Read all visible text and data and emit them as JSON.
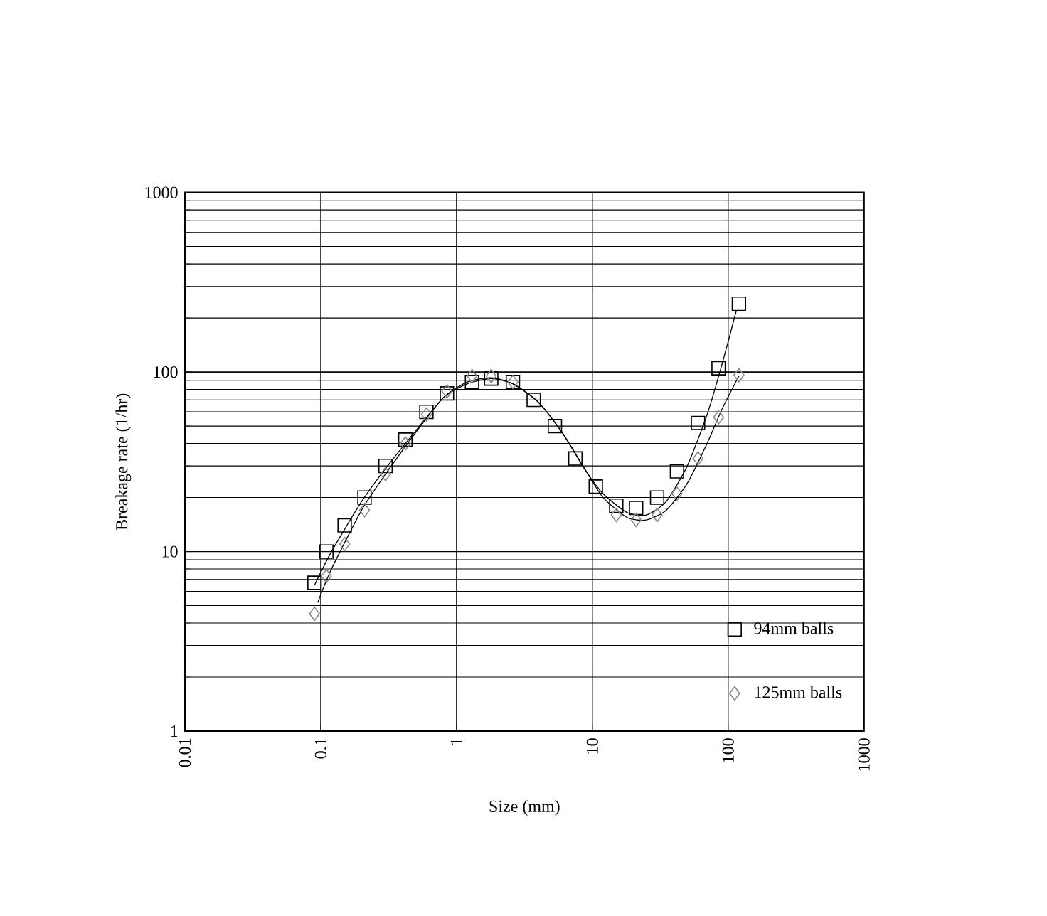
{
  "chart_data": {
    "type": "scatter",
    "xlabel": "Size (mm)",
    "ylabel": "Breakage rate (1/hr)",
    "log": "xy",
    "grid": true,
    "legend": "bottom right",
    "xlim": [
      0.01,
      1000
    ],
    "ylim": [
      1,
      1000
    ],
    "xticks": [
      0.01,
      0.1,
      1,
      10,
      100,
      1000
    ],
    "yticks": [
      1,
      10,
      100,
      1000
    ],
    "series": [
      {
        "name": "94mm balls",
        "marker": "square",
        "color": "#000000",
        "x": [
          0.09,
          0.11,
          0.15,
          0.21,
          0.3,
          0.42,
          0.6,
          0.85,
          1.3,
          1.8,
          2.6,
          3.7,
          5.3,
          7.5,
          10.6,
          15,
          21,
          30,
          42,
          60,
          85,
          120
        ],
        "values": [
          6.7,
          10,
          14,
          20,
          30,
          42,
          60,
          76,
          88,
          92,
          88,
          70,
          50,
          33,
          23,
          18,
          17.5,
          20,
          28,
          52,
          105,
          240
        ]
      },
      {
        "name": "125mm balls",
        "marker": "diamond",
        "color": "#888888",
        "x": [
          0.09,
          0.11,
          0.15,
          0.21,
          0.3,
          0.42,
          0.6,
          0.85,
          1.3,
          1.8,
          2.6,
          15,
          21,
          30,
          42,
          60,
          85,
          120
        ],
        "values": [
          4.5,
          7.3,
          11,
          17,
          27,
          40,
          58,
          78,
          95,
          95,
          88,
          16,
          15,
          16,
          21,
          33,
          56,
          96
        ]
      },
      {
        "type": "line",
        "marker": "none",
        "color": "#000000",
        "x": [
          0.09,
          0.12,
          0.2,
          0.3,
          0.5,
          0.8,
          1.2,
          1.8,
          2.6,
          4,
          6,
          9,
          12,
          18,
          25,
          35,
          50,
          70,
          90,
          115
        ],
        "values": [
          6.5,
          10,
          19,
          29,
          47,
          72,
          86,
          92,
          86,
          68,
          46,
          28,
          21,
          16.5,
          16,
          19,
          30,
          58,
          110,
          220
        ]
      },
      {
        "type": "line",
        "marker": "none",
        "color": "#000000",
        "x": [
          0.095,
          0.12,
          0.2,
          0.3,
          0.5,
          0.8,
          1.2,
          1.8,
          2.6,
          4,
          6,
          9,
          12,
          18,
          25,
          35,
          50,
          70,
          90,
          120
        ],
        "values": [
          5.2,
          8,
          17,
          27,
          46,
          72,
          88,
          93,
          86,
          68,
          46,
          28,
          20,
          15.5,
          15,
          17,
          24,
          40,
          62,
          95
        ]
      }
    ]
  }
}
